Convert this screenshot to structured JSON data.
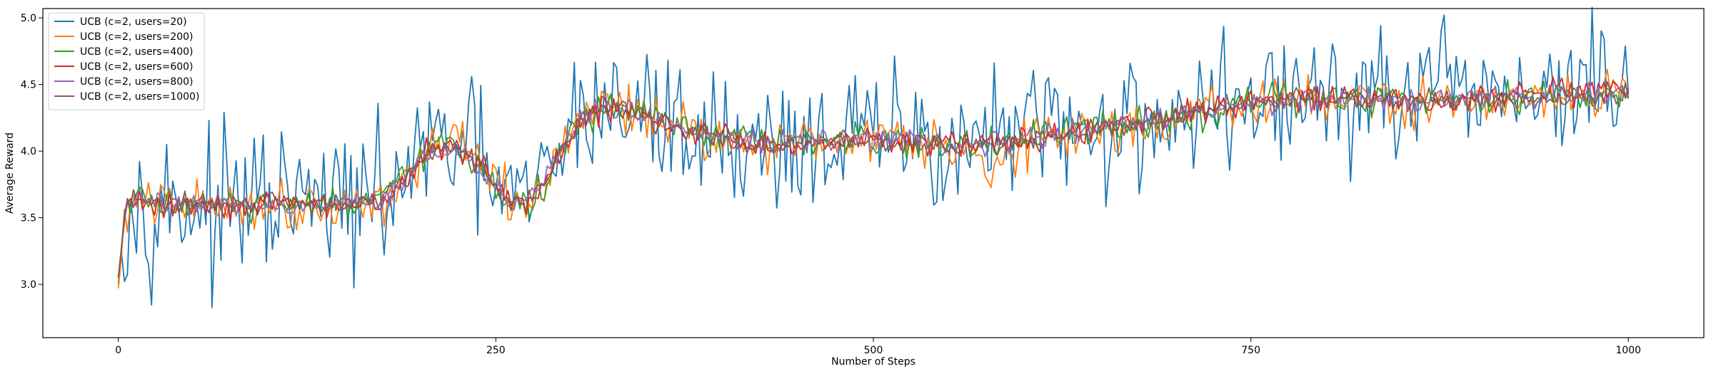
{
  "chart_data": {
    "type": "line",
    "title": "",
    "xlabel": "Number of Steps",
    "ylabel": "Average Reward",
    "xlim": [
      -50,
      1050
    ],
    "ylim": [
      2.6,
      5.07
    ],
    "x_ticks": [
      0,
      250,
      500,
      750,
      1000
    ],
    "y_ticks": [
      3.0,
      3.5,
      4.0,
      4.5,
      5.0
    ],
    "x_tick_labels": [
      "0",
      "250",
      "500",
      "750",
      "1000"
    ],
    "y_tick_labels": [
      "3.0",
      "3.5",
      "4.0",
      "4.5",
      "5.0"
    ],
    "grid": false,
    "legend_position": "upper left",
    "series": [
      {
        "name": "UCB (c=2, users=20)",
        "color": "#1f77b4",
        "noise": 0.26,
        "x": [
          0,
          5,
          10,
          20,
          30,
          40,
          50,
          60,
          65,
          70,
          80,
          90,
          100,
          110,
          120,
          130,
          140,
          150,
          160,
          170,
          180,
          190,
          200,
          210,
          220,
          230,
          240,
          250,
          260,
          270,
          280,
          290,
          300,
          310,
          320,
          330,
          340,
          350,
          360,
          370,
          380,
          390,
          400,
          410,
          420,
          430,
          440,
          450,
          460,
          470,
          480,
          490,
          500,
          510,
          520,
          530,
          540,
          550,
          560,
          570,
          580,
          590,
          600,
          610,
          620,
          630,
          640,
          650,
          660,
          670,
          680,
          690,
          700,
          710,
          720,
          730,
          740,
          750,
          760,
          770,
          780,
          790,
          800,
          810,
          820,
          830,
          840,
          850,
          860,
          870,
          880,
          890,
          900,
          910,
          920,
          930,
          940,
          950,
          960,
          970,
          980,
          990,
          1000
        ],
        "y": [
          3.0,
          3.62,
          3.64,
          3.6,
          3.62,
          3.58,
          3.6,
          3.6,
          3.3,
          3.6,
          3.58,
          3.62,
          3.6,
          3.6,
          3.62,
          3.6,
          3.6,
          3.62,
          3.6,
          3.62,
          3.65,
          3.85,
          3.95,
          4.02,
          4.05,
          4.0,
          3.9,
          3.75,
          3.62,
          3.6,
          3.75,
          3.95,
          4.18,
          4.32,
          4.35,
          4.32,
          4.3,
          4.28,
          4.22,
          4.18,
          4.15,
          4.12,
          4.1,
          4.08,
          4.05,
          4.05,
          4.06,
          4.08,
          4.07,
          4.08,
          4.1,
          4.1,
          4.12,
          4.12,
          4.11,
          4.1,
          4.08,
          4.05,
          4.05,
          4.07,
          4.09,
          4.1,
          4.12,
          4.13,
          4.14,
          4.15,
          4.17,
          4.19,
          4.2,
          4.22,
          4.23,
          4.25,
          4.27,
          4.3,
          4.32,
          4.34,
          4.35,
          4.37,
          4.38,
          4.39,
          4.39,
          4.4,
          4.4,
          4.4,
          4.39,
          4.38,
          4.38,
          4.38,
          4.39,
          4.4,
          4.41,
          4.42,
          4.43,
          4.44,
          4.45,
          4.45,
          4.44,
          4.44,
          4.44,
          4.45,
          4.45,
          4.45,
          4.55
        ]
      },
      {
        "name": "UCB (c=2, users=200)",
        "color": "#ff7f0e",
        "noise": 0.09,
        "x": [
          0,
          5,
          10,
          20,
          50,
          100,
          150,
          175,
          190,
          200,
          210,
          220,
          230,
          240,
          250,
          260,
          270,
          280,
          290,
          300,
          310,
          320,
          330,
          340,
          350,
          360,
          370,
          380,
          390,
          400,
          420,
          440,
          460,
          480,
          500,
          520,
          540,
          560,
          570,
          580,
          590,
          600,
          620,
          640,
          660,
          680,
          700,
          720,
          740,
          760,
          780,
          800,
          820,
          840,
          850,
          860,
          870,
          880,
          900,
          920,
          940,
          960,
          980,
          1000
        ],
        "y": [
          2.97,
          3.55,
          3.62,
          3.6,
          3.6,
          3.6,
          3.6,
          3.62,
          3.8,
          3.95,
          4.02,
          4.05,
          4.0,
          3.9,
          3.75,
          3.62,
          3.58,
          3.72,
          3.93,
          4.15,
          4.28,
          4.33,
          4.33,
          4.31,
          4.3,
          4.25,
          4.2,
          4.15,
          4.12,
          4.1,
          4.06,
          4.06,
          4.08,
          4.1,
          4.11,
          4.12,
          4.09,
          4.02,
          3.95,
          3.92,
          3.98,
          4.05,
          4.1,
          4.15,
          4.18,
          4.2,
          4.25,
          4.3,
          4.34,
          4.37,
          4.38,
          4.39,
          4.39,
          4.38,
          4.3,
          4.33,
          4.36,
          4.38,
          4.39,
          4.4,
          4.42,
          4.43,
          4.44,
          4.4
        ]
      },
      {
        "name": "UCB (c=2, users=400)",
        "color": "#2ca02c",
        "noise": 0.06,
        "x": [
          0,
          5,
          10,
          20,
          50,
          100,
          150,
          175,
          190,
          200,
          210,
          220,
          230,
          240,
          250,
          260,
          270,
          280,
          290,
          300,
          310,
          320,
          330,
          340,
          350,
          360,
          370,
          380,
          390,
          400,
          420,
          440,
          460,
          480,
          500,
          520,
          540,
          560,
          580,
          600,
          620,
          640,
          660,
          680,
          700,
          720,
          740,
          760,
          780,
          800,
          820,
          840,
          860,
          880,
          900,
          920,
          940,
          960,
          980,
          1000
        ],
        "y": [
          3.05,
          3.6,
          3.64,
          3.62,
          3.6,
          3.58,
          3.6,
          3.62,
          3.8,
          3.96,
          4.03,
          4.05,
          4.0,
          3.88,
          3.72,
          3.62,
          3.58,
          3.7,
          3.9,
          4.12,
          4.27,
          4.32,
          4.32,
          4.3,
          4.27,
          4.22,
          4.18,
          4.14,
          4.12,
          4.1,
          4.07,
          4.05,
          4.06,
          4.08,
          4.08,
          4.07,
          4.05,
          4.03,
          4.04,
          4.08,
          4.12,
          4.16,
          4.19,
          4.22,
          4.26,
          4.3,
          4.34,
          4.37,
          4.39,
          4.4,
          4.4,
          4.39,
          4.38,
          4.39,
          4.4,
          4.41,
          4.42,
          4.43,
          4.43,
          4.42
        ]
      },
      {
        "name": "UCB (c=2, users=600)",
        "color": "#d62728",
        "noise": 0.05,
        "x": [
          0,
          5,
          10,
          20,
          50,
          100,
          150,
          175,
          190,
          200,
          210,
          220,
          230,
          240,
          250,
          260,
          270,
          280,
          290,
          300,
          310,
          320,
          330,
          340,
          350,
          360,
          370,
          380,
          390,
          400,
          420,
          440,
          460,
          480,
          500,
          520,
          540,
          560,
          580,
          600,
          620,
          640,
          660,
          680,
          700,
          720,
          740,
          760,
          780,
          800,
          820,
          840,
          860,
          880,
          900,
          920,
          940,
          960,
          980,
          1000
        ],
        "y": [
          3.05,
          3.58,
          3.62,
          3.6,
          3.6,
          3.6,
          3.6,
          3.62,
          3.78,
          3.94,
          4.02,
          4.04,
          4.0,
          3.9,
          3.74,
          3.62,
          3.58,
          3.7,
          3.9,
          4.12,
          4.26,
          4.31,
          4.32,
          4.3,
          4.27,
          4.22,
          4.18,
          4.15,
          4.13,
          4.1,
          4.05,
          4.04,
          4.06,
          4.08,
          4.1,
          4.1,
          4.08,
          4.06,
          4.07,
          4.1,
          4.13,
          4.16,
          4.19,
          4.22,
          4.26,
          4.3,
          4.34,
          4.36,
          4.38,
          4.39,
          4.4,
          4.39,
          4.38,
          4.38,
          4.4,
          4.41,
          4.43,
          4.44,
          4.44,
          4.42
        ]
      },
      {
        "name": "UCB (c=2, users=800)",
        "color": "#9467bd",
        "noise": 0.04,
        "x": [
          0,
          5,
          10,
          20,
          50,
          100,
          150,
          175,
          190,
          200,
          210,
          220,
          230,
          240,
          250,
          260,
          270,
          280,
          290,
          300,
          310,
          320,
          330,
          340,
          350,
          360,
          370,
          380,
          390,
          400,
          420,
          440,
          460,
          480,
          500,
          520,
          540,
          560,
          580,
          600,
          620,
          640,
          660,
          680,
          700,
          720,
          740,
          760,
          780,
          800,
          820,
          840,
          860,
          880,
          900,
          920,
          940,
          960,
          980,
          1000
        ],
        "y": [
          3.05,
          3.6,
          3.63,
          3.62,
          3.61,
          3.6,
          3.6,
          3.62,
          3.8,
          3.95,
          4.02,
          4.04,
          4.0,
          3.88,
          3.73,
          3.62,
          3.6,
          3.72,
          3.92,
          4.13,
          4.27,
          4.32,
          4.32,
          4.3,
          4.26,
          4.21,
          4.17,
          4.14,
          4.12,
          4.1,
          4.07,
          4.06,
          4.07,
          4.08,
          4.09,
          4.09,
          4.07,
          4.05,
          4.06,
          4.09,
          4.12,
          4.16,
          4.19,
          4.22,
          4.26,
          4.3,
          4.34,
          4.37,
          4.38,
          4.39,
          4.39,
          4.39,
          4.38,
          4.38,
          4.39,
          4.4,
          4.41,
          4.42,
          4.43,
          4.42
        ]
      },
      {
        "name": "UCB (c=2, users=1000)",
        "color": "#8c564b",
        "noise": 0.04,
        "x": [
          0,
          5,
          10,
          20,
          50,
          100,
          150,
          175,
          190,
          200,
          210,
          220,
          230,
          240,
          250,
          260,
          270,
          280,
          290,
          300,
          310,
          320,
          330,
          340,
          350,
          360,
          370,
          380,
          390,
          400,
          420,
          440,
          460,
          480,
          500,
          520,
          540,
          560,
          580,
          600,
          620,
          640,
          660,
          680,
          700,
          720,
          740,
          760,
          780,
          800,
          820,
          840,
          860,
          880,
          900,
          920,
          940,
          960,
          980,
          1000
        ],
        "y": [
          3.05,
          3.6,
          3.63,
          3.62,
          3.61,
          3.6,
          3.6,
          3.62,
          3.8,
          3.95,
          4.02,
          4.04,
          4.0,
          3.88,
          3.72,
          3.62,
          3.6,
          3.72,
          3.92,
          4.13,
          4.27,
          4.32,
          4.31,
          4.29,
          4.25,
          4.2,
          4.16,
          4.13,
          4.11,
          4.09,
          4.06,
          4.06,
          4.07,
          4.08,
          4.08,
          4.06,
          4.03,
          4.02,
          4.04,
          4.08,
          4.12,
          4.16,
          4.19,
          4.22,
          4.26,
          4.3,
          4.34,
          4.37,
          4.38,
          4.39,
          4.39,
          4.39,
          4.38,
          4.37,
          4.38,
          4.39,
          4.4,
          4.41,
          4.42,
          4.41
        ]
      }
    ]
  }
}
